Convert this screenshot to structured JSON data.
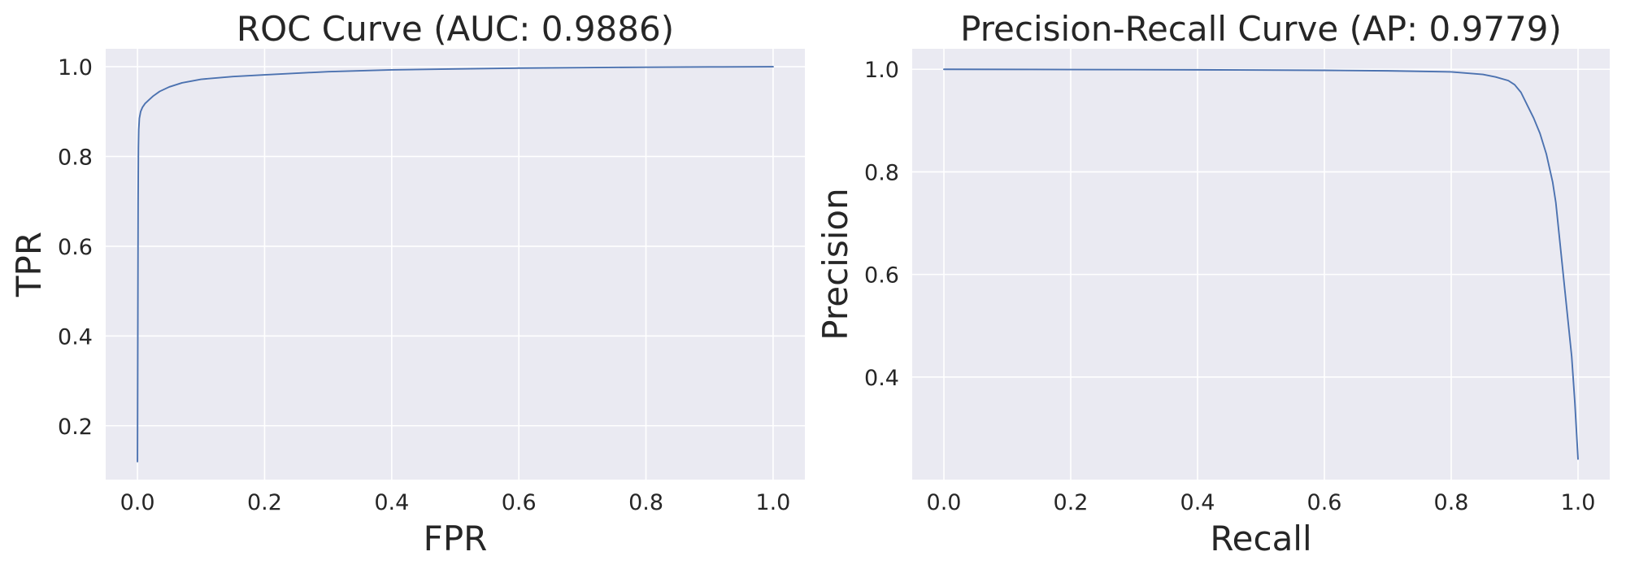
{
  "chart_data": [
    {
      "type": "line",
      "title": "ROC Curve (AUC: 0.9886)",
      "xlabel": "FPR",
      "ylabel": "TPR",
      "xlim": [
        -0.05,
        1.05
      ],
      "ylim": [
        0.08,
        1.04
      ],
      "xticks": [
        0.0,
        0.2,
        0.4,
        0.6,
        0.8,
        1.0
      ],
      "xtick_labels": [
        "0.0",
        "0.2",
        "0.4",
        "0.6",
        "0.8",
        "1.0"
      ],
      "yticks": [
        0.2,
        0.4,
        0.6,
        0.8,
        1.0
      ],
      "ytick_labels": [
        "0.2",
        "0.4",
        "0.6",
        "0.8",
        "1.0"
      ],
      "grid": true,
      "series": [
        {
          "color": "#4c72b0",
          "x": [
            0.0,
            0.0005,
            0.001,
            0.0015,
            0.002,
            0.003,
            0.005,
            0.008,
            0.012,
            0.018,
            0.025,
            0.035,
            0.05,
            0.07,
            0.1,
            0.15,
            0.2,
            0.3,
            0.4,
            0.5,
            0.6,
            0.7,
            0.8,
            0.9,
            1.0
          ],
          "y": [
            0.12,
            0.4,
            0.7,
            0.82,
            0.86,
            0.885,
            0.9,
            0.91,
            0.918,
            0.926,
            0.935,
            0.945,
            0.955,
            0.964,
            0.972,
            0.978,
            0.982,
            0.989,
            0.993,
            0.995,
            0.997,
            0.998,
            0.999,
            0.9995,
            1.0
          ]
        }
      ]
    },
    {
      "type": "line",
      "title": "Precision-Recall Curve (AP: 0.9779)",
      "xlabel": "Recall",
      "ylabel": "Precision",
      "xlim": [
        -0.05,
        1.05
      ],
      "ylim": [
        0.2,
        1.04
      ],
      "xticks": [
        0.0,
        0.2,
        0.4,
        0.6,
        0.8,
        1.0
      ],
      "xtick_labels": [
        "0.0",
        "0.2",
        "0.4",
        "0.6",
        "0.8",
        "1.0"
      ],
      "yticks": [
        0.4,
        0.6,
        0.8,
        1.0
      ],
      "ytick_labels": [
        "0.4",
        "0.6",
        "0.8",
        "1.0"
      ],
      "grid": true,
      "series": [
        {
          "color": "#4c72b0",
          "x": [
            0.0,
            0.2,
            0.4,
            0.6,
            0.7,
            0.8,
            0.85,
            0.87,
            0.89,
            0.9,
            0.91,
            0.92,
            0.93,
            0.94,
            0.95,
            0.96,
            0.965,
            0.97,
            0.975,
            0.98,
            0.985,
            0.99,
            0.995,
            1.0
          ],
          "y": [
            1.0,
            0.9995,
            0.999,
            0.998,
            0.997,
            0.995,
            0.99,
            0.985,
            0.978,
            0.97,
            0.955,
            0.93,
            0.905,
            0.875,
            0.835,
            0.78,
            0.74,
            0.68,
            0.62,
            0.56,
            0.5,
            0.44,
            0.35,
            0.24
          ]
        }
      ]
    }
  ]
}
